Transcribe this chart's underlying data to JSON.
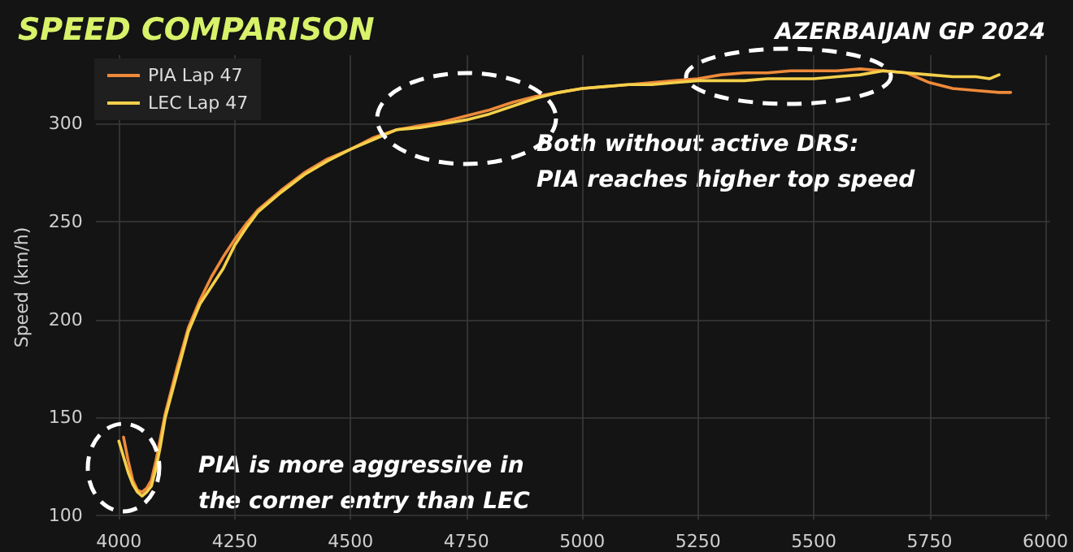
{
  "chart_data": {
    "type": "line",
    "title": "SPEED COMPARISON",
    "subtitle": "AZERBAIJAN GP 2024",
    "ylabel": "Speed (km/h)",
    "annotations": [
      "Both without active DRS:\nPIA reaches higher top speed",
      "PIA is more aggressive in\nthe corner entry than LEC"
    ],
    "xlim": [
      3950,
      6010
    ],
    "ylim": [
      98,
      335
    ],
    "xticks": [
      4000,
      4250,
      4500,
      4750,
      5000,
      5250,
      5500,
      5750,
      6000
    ],
    "yticks": [
      100,
      150,
      200,
      250,
      300
    ],
    "grid": true,
    "legend": "top left",
    "line_style": "solid",
    "marker": "none",
    "series": [
      {
        "name": "PIA Lap 47",
        "color": "#ee8a3a",
        "x": [
          4010,
          4020,
          4030,
          4040,
          4050,
          4060,
          4070,
          4080,
          4090,
          4100,
          4125,
          4150,
          4175,
          4200,
          4225,
          4250,
          4275,
          4300,
          4350,
          4400,
          4450,
          4500,
          4550,
          4600,
          4650,
          4700,
          4750,
          4800,
          4850,
          4900,
          4950,
          5000,
          5050,
          5100,
          5150,
          5200,
          5250,
          5300,
          5350,
          5400,
          5450,
          5500,
          5550,
          5600,
          5650,
          5700,
          5750,
          5800,
          5850,
          5900,
          5925
        ],
        "values": [
          140,
          128,
          118,
          113,
          112,
          114,
          118,
          128,
          140,
          152,
          175,
          196,
          210,
          222,
          232,
          241,
          249,
          256,
          266,
          275,
          282,
          287,
          293,
          297,
          299,
          301,
          304,
          307,
          311,
          314,
          316,
          318,
          319,
          320,
          321,
          322,
          323,
          325,
          326,
          326,
          327,
          327,
          327,
          328,
          327,
          326,
          321,
          318,
          317,
          316,
          316
        ]
      },
      {
        "name": "LEC Lap 47",
        "color": "#f4d04a",
        "x": [
          4000,
          4010,
          4020,
          4030,
          4040,
          4050,
          4060,
          4070,
          4080,
          4090,
          4100,
          4125,
          4150,
          4175,
          4200,
          4225,
          4250,
          4275,
          4300,
          4350,
          4400,
          4450,
          4500,
          4550,
          4600,
          4650,
          4700,
          4750,
          4800,
          4850,
          4900,
          4950,
          5000,
          5050,
          5100,
          5150,
          5200,
          5250,
          5300,
          5350,
          5400,
          5450,
          5500,
          5550,
          5600,
          5650,
          5700,
          5750,
          5800,
          5850,
          5880,
          5900
        ],
        "values": [
          138,
          130,
          122,
          116,
          112,
          110,
          112,
          115,
          124,
          136,
          150,
          172,
          194,
          208,
          217,
          226,
          238,
          247,
          255,
          265,
          274,
          281,
          287,
          292,
          297,
          298,
          300,
          302,
          305,
          309,
          313,
          316,
          318,
          319,
          320,
          320,
          321,
          322,
          322,
          322,
          323,
          323,
          323,
          324,
          325,
          327,
          326,
          325,
          324,
          324,
          323,
          325
        ]
      }
    ]
  }
}
